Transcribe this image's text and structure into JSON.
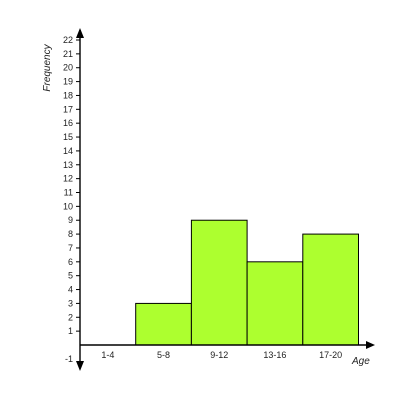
{
  "chart_data": {
    "type": "bar",
    "categories": [
      "1-4",
      "5-8",
      "9-12",
      "13-16",
      "17-20"
    ],
    "values": [
      0,
      3,
      9,
      6,
      8
    ],
    "xlabel": "Age",
    "ylabel": "Frequency",
    "ylim": [
      -1,
      22
    ],
    "yticks": [
      -1,
      1,
      2,
      3,
      4,
      5,
      6,
      7,
      8,
      9,
      10,
      11,
      12,
      13,
      14,
      15,
      16,
      17,
      18,
      19,
      20,
      21,
      22
    ],
    "grid": false,
    "colors": {
      "bar_fill": "#ADFF2F",
      "bar_stroke": "#000000",
      "axis": "#000000"
    }
  }
}
